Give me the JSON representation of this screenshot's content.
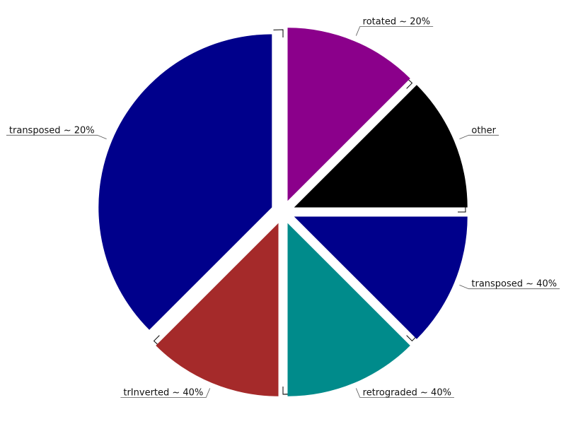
{
  "chart_data": {
    "type": "pie",
    "title": "",
    "exploded": true,
    "start_angle_deg": 0,
    "direction": "clockwise",
    "slices": [
      {
        "label": "rotated ~ 20%",
        "value": 12.5,
        "color": "#8b008b"
      },
      {
        "label": "other",
        "value": 12.5,
        "color": "#000000"
      },
      {
        "label": "transposed ~ 40%",
        "value": 12.5,
        "color": "#00008b"
      },
      {
        "label": "retrograded ~ 40%",
        "value": 12.5,
        "color": "#008b8b"
      },
      {
        "label": "",
        "value": 0,
        "color": "#ffffff"
      },
      {
        "label": "trInverted ~ 40%",
        "value": 12.5,
        "color": "#a52a2a"
      },
      {
        "label": "transposed ~ 20%",
        "value": 37.5,
        "color": "#00008b"
      }
    ]
  }
}
